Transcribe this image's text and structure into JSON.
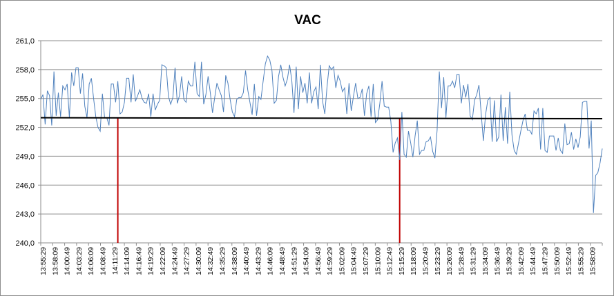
{
  "chart_data": {
    "type": "line",
    "title": "VAC",
    "xlabel": "",
    "ylabel": "",
    "ylim": [
      240,
      261
    ],
    "y_ticks": [
      240,
      243,
      246,
      249,
      252,
      255,
      258,
      261
    ],
    "y_tick_labels": [
      "240,0",
      "243,0",
      "246,0",
      "249,0",
      "252,0",
      "255,0",
      "258,0",
      "261,0"
    ],
    "grid": "horizontal",
    "x_tick_labels": [
      "13:55:29",
      "13:58:09",
      "14:00:49",
      "14:03:29",
      "14:06:09",
      "14:08:49",
      "14:11:29",
      "14:14:09",
      "14:16:49",
      "14:19:29",
      "14:22:09",
      "14:24:49",
      "14:27:29",
      "14:30:09",
      "14:32:49",
      "14:35:29",
      "14:38:09",
      "14:40:49",
      "14:43:29",
      "14:46:09",
      "14:48:49",
      "14:51:29",
      "14:54:09",
      "14:56:49",
      "14:59:29",
      "15:02:09",
      "15:04:49",
      "15:07:29",
      "15:10:09",
      "15:12:49",
      "15:15:29",
      "15:18:09",
      "15:20:49",
      "15:23:29",
      "15:26:09",
      "15:28:49",
      "15:31:29",
      "15:34:09",
      "15:36:49",
      "15:39:29",
      "15:42:09",
      "15:44:49",
      "15:47:29",
      "15:50:09",
      "15:52:49",
      "15:55:29",
      "15:58:09"
    ],
    "series": [
      {
        "color": "#4f81bd",
        "values": [
          254.9,
          255.4,
          252.3,
          255.8,
          255.3,
          252.2,
          257.8,
          253.2,
          255.6,
          253.1,
          256.3,
          255.9,
          256.5,
          253.0,
          257.7,
          256.3,
          258.2,
          258.2,
          255.5,
          257.6,
          254.2,
          253.0,
          256.5,
          257.1,
          255.0,
          253.1,
          252.0,
          251.6,
          255.5,
          253.0,
          253.0,
          252.2,
          256.5,
          256.5,
          254.6,
          256.8,
          253.4,
          253.6,
          254.6,
          257.1,
          257.1,
          254.6,
          257.5,
          254.7,
          255.3,
          255.9,
          255.0,
          254.6,
          254.5,
          255.5,
          253.1,
          255.5,
          253.8,
          254.4,
          254.8,
          258.5,
          258.4,
          258.2,
          255.2,
          254.4,
          255.1,
          258.2,
          254.5,
          255.3,
          257.3,
          254.9,
          254.6,
          256.8,
          256.3,
          256.3,
          258.8,
          255.5,
          255.2,
          258.8,
          254.4,
          255.4,
          257.3,
          255.6,
          253.5,
          255.1,
          256.6,
          255.9,
          255.3,
          253.6,
          257.4,
          256.6,
          254.9,
          253.6,
          253.1,
          254.9,
          255.1,
          255.1,
          255.6,
          257.9,
          255.9,
          254.6,
          253.3,
          256.5,
          253.2,
          255.2,
          254.9,
          256.8,
          258.6,
          259.4,
          259.0,
          257.9,
          254.5,
          254.8,
          257.3,
          258.5,
          257.2,
          256.3,
          257.0,
          258.5,
          256.9,
          253.5,
          258.3,
          253.9,
          257.3,
          255.6,
          256.6,
          254.5,
          257.7,
          254.5,
          255.7,
          256.2,
          253.9,
          258.5,
          254.7,
          253.4,
          256.2,
          258.4,
          258.0,
          258.3,
          256.1,
          257.4,
          256.8,
          255.7,
          256.1,
          253.4,
          256.6,
          253.7,
          255.2,
          256.6,
          255.0,
          255.1,
          256.0,
          253.2,
          255.5,
          256.3,
          253.1,
          256.5,
          252.5,
          252.8,
          254.5,
          256.8,
          254.2,
          254.1,
          254.1,
          252.6,
          249.4,
          250.4,
          250.9,
          248.6,
          253.6,
          249.2,
          248.9,
          251.6,
          250.4,
          248.9,
          251.1,
          252.7,
          249.2,
          249.6,
          249.6,
          250.5,
          250.6,
          251.0,
          249.5,
          248.8,
          251.7,
          257.8,
          254.0,
          257.2,
          253.0,
          256.3,
          256.3,
          256.8,
          256.1,
          257.5,
          257.5,
          254.5,
          256.4,
          255.1,
          256.5,
          253.2,
          252.8,
          254.8,
          255.4,
          256.4,
          253.5,
          250.6,
          253.3,
          254.8,
          255.1,
          250.5,
          254.8,
          250.5,
          251.0,
          255.4,
          250.6,
          254.1,
          250.3,
          255.7,
          251.2,
          249.6,
          249.2,
          250.4,
          251.6,
          252.7,
          253.4,
          251.7,
          251.7,
          251.3,
          253.7,
          253.4,
          254.0,
          249.7,
          254.0,
          249.6,
          249.4,
          251.1,
          251.1,
          251.1,
          249.6,
          250.9,
          249.6,
          249.3,
          252.4,
          250.2,
          250.3,
          251.5,
          249.7,
          250.8,
          249.9,
          251.0,
          254.6,
          254.7,
          254.7,
          249.8,
          252.7,
          243.1,
          247.0,
          247.3,
          248.3,
          249.8
        ]
      },
      {
        "color": "#000000",
        "values": [
          253.0,
          252.9
        ]
      }
    ],
    "markers": [
      {
        "x_index": 35,
        "color": "#c00000"
      },
      {
        "x_index": 163,
        "color": "#c00000"
      }
    ]
  }
}
